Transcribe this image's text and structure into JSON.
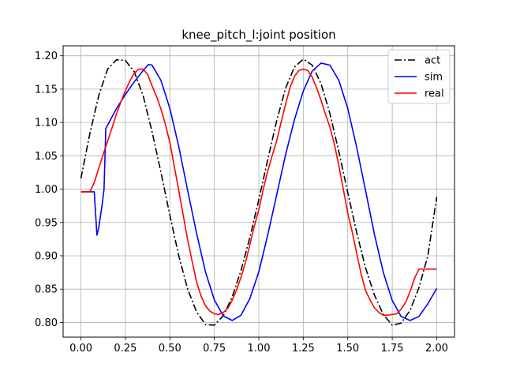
{
  "chart_data": {
    "type": "line",
    "title": "knee_pitch_l:joint position",
    "xlabel": "",
    "ylabel": "",
    "xlim": [
      -0.1,
      2.1
    ],
    "ylim": [
      0.778,
      1.215
    ],
    "xticks": [
      0.0,
      0.25,
      0.5,
      0.75,
      1.0,
      1.25,
      1.5,
      1.75,
      2.0
    ],
    "xtick_labels": [
      "0.00",
      "0.25",
      "0.50",
      "0.75",
      "1.00",
      "1.25",
      "1.50",
      "1.75",
      "2.00"
    ],
    "yticks": [
      0.8,
      0.85,
      0.9,
      0.95,
      1.0,
      1.05,
      1.1,
      1.15,
      1.2
    ],
    "ytick_labels": [
      "0.80",
      "0.85",
      "0.90",
      "0.95",
      "1.00",
      "1.05",
      "1.10",
      "1.15",
      "1.20"
    ],
    "grid": true,
    "legend": "top-right",
    "series": [
      {
        "name": "act",
        "color": "#000000",
        "style": "dashdot",
        "x": [
          0.0,
          0.05,
          0.1,
          0.15,
          0.2,
          0.25,
          0.3,
          0.35,
          0.4,
          0.45,
          0.5,
          0.55,
          0.6,
          0.65,
          0.7,
          0.75,
          0.8,
          0.85,
          0.9,
          0.95,
          1.0,
          1.05,
          1.1,
          1.15,
          1.2,
          1.25,
          1.3,
          1.35,
          1.4,
          1.45,
          1.5,
          1.55,
          1.6,
          1.65,
          1.7,
          1.75,
          1.8,
          1.85,
          1.9,
          1.95,
          2.0
        ],
        "y": [
          1.016,
          1.083,
          1.14,
          1.18,
          1.194,
          1.193,
          1.176,
          1.14,
          1.086,
          1.025,
          0.961,
          0.9,
          0.85,
          0.816,
          0.797,
          0.796,
          0.81,
          0.838,
          0.878,
          0.928,
          0.984,
          1.044,
          1.102,
          1.151,
          1.183,
          1.195,
          1.186,
          1.158,
          1.113,
          1.056,
          0.995,
          0.935,
          0.882,
          0.841,
          0.812,
          0.796,
          0.799,
          0.818,
          0.852,
          0.9,
          0.988
        ]
      },
      {
        "name": "sim",
        "color": "#0000ff",
        "style": "solid",
        "x": [
          0.0,
          0.05,
          0.075,
          0.09,
          0.1,
          0.12,
          0.13,
          0.14,
          0.16,
          0.2,
          0.25,
          0.3,
          0.35,
          0.38,
          0.4,
          0.45,
          0.5,
          0.55,
          0.6,
          0.65,
          0.7,
          0.75,
          0.8,
          0.85,
          0.9,
          0.95,
          1.0,
          1.05,
          1.1,
          1.15,
          1.2,
          1.25,
          1.3,
          1.35,
          1.4,
          1.45,
          1.5,
          1.55,
          1.6,
          1.65,
          1.7,
          1.75,
          1.8,
          1.85,
          1.9,
          1.95,
          2.0
        ],
        "y": [
          0.996,
          0.996,
          0.996,
          0.931,
          0.942,
          0.978,
          1.0,
          1.091,
          1.101,
          1.121,
          1.142,
          1.161,
          1.178,
          1.187,
          1.186,
          1.163,
          1.121,
          1.064,
          0.998,
          0.934,
          0.876,
          0.834,
          0.81,
          0.803,
          0.811,
          0.836,
          0.876,
          0.931,
          0.991,
          1.051,
          1.104,
          1.147,
          1.177,
          1.189,
          1.186,
          1.163,
          1.121,
          1.063,
          0.998,
          0.932,
          0.875,
          0.833,
          0.809,
          0.803,
          0.809,
          0.828,
          0.851
        ]
      },
      {
        "name": "real",
        "color": "#ff0000",
        "style": "solid",
        "x": [
          0.0,
          0.05,
          0.075,
          0.1,
          0.125,
          0.15,
          0.175,
          0.2,
          0.225,
          0.25,
          0.275,
          0.3,
          0.325,
          0.35,
          0.375,
          0.4,
          0.425,
          0.45,
          0.475,
          0.5,
          0.525,
          0.55,
          0.575,
          0.6,
          0.625,
          0.65,
          0.675,
          0.7,
          0.725,
          0.75,
          0.775,
          0.8,
          0.825,
          0.85,
          0.875,
          0.9,
          0.925,
          0.95,
          0.975,
          1.0,
          1.025,
          1.05,
          1.075,
          1.1,
          1.125,
          1.15,
          1.175,
          1.2,
          1.225,
          1.25,
          1.275,
          1.3,
          1.325,
          1.35,
          1.375,
          1.4,
          1.425,
          1.45,
          1.475,
          1.5,
          1.525,
          1.55,
          1.575,
          1.6,
          1.625,
          1.65,
          1.675,
          1.7,
          1.725,
          1.75,
          1.775,
          1.8,
          1.825,
          1.85,
          1.875,
          1.9,
          1.925,
          1.95,
          1.975,
          2.0
        ],
        "y": [
          0.996,
          0.996,
          1.01,
          1.031,
          1.052,
          1.072,
          1.092,
          1.113,
          1.131,
          1.148,
          1.162,
          1.174,
          1.18,
          1.18,
          1.172,
          1.155,
          1.139,
          1.12,
          1.097,
          1.07,
          1.034,
          0.998,
          0.961,
          0.924,
          0.892,
          0.861,
          0.84,
          0.825,
          0.817,
          0.813,
          0.812,
          0.815,
          0.821,
          0.833,
          0.849,
          0.868,
          0.89,
          0.917,
          0.945,
          0.969,
          1.0,
          1.027,
          1.05,
          1.072,
          1.1,
          1.127,
          1.152,
          1.169,
          1.178,
          1.18,
          1.178,
          1.168,
          1.152,
          1.133,
          1.112,
          1.093,
          1.067,
          1.035,
          1.0,
          0.964,
          0.936,
          0.904,
          0.873,
          0.848,
          0.834,
          0.822,
          0.815,
          0.811,
          0.811,
          0.812,
          0.813,
          0.82,
          0.83,
          0.846,
          0.866,
          0.88,
          0.88,
          0.88,
          0.88,
          0.88
        ]
      }
    ]
  }
}
